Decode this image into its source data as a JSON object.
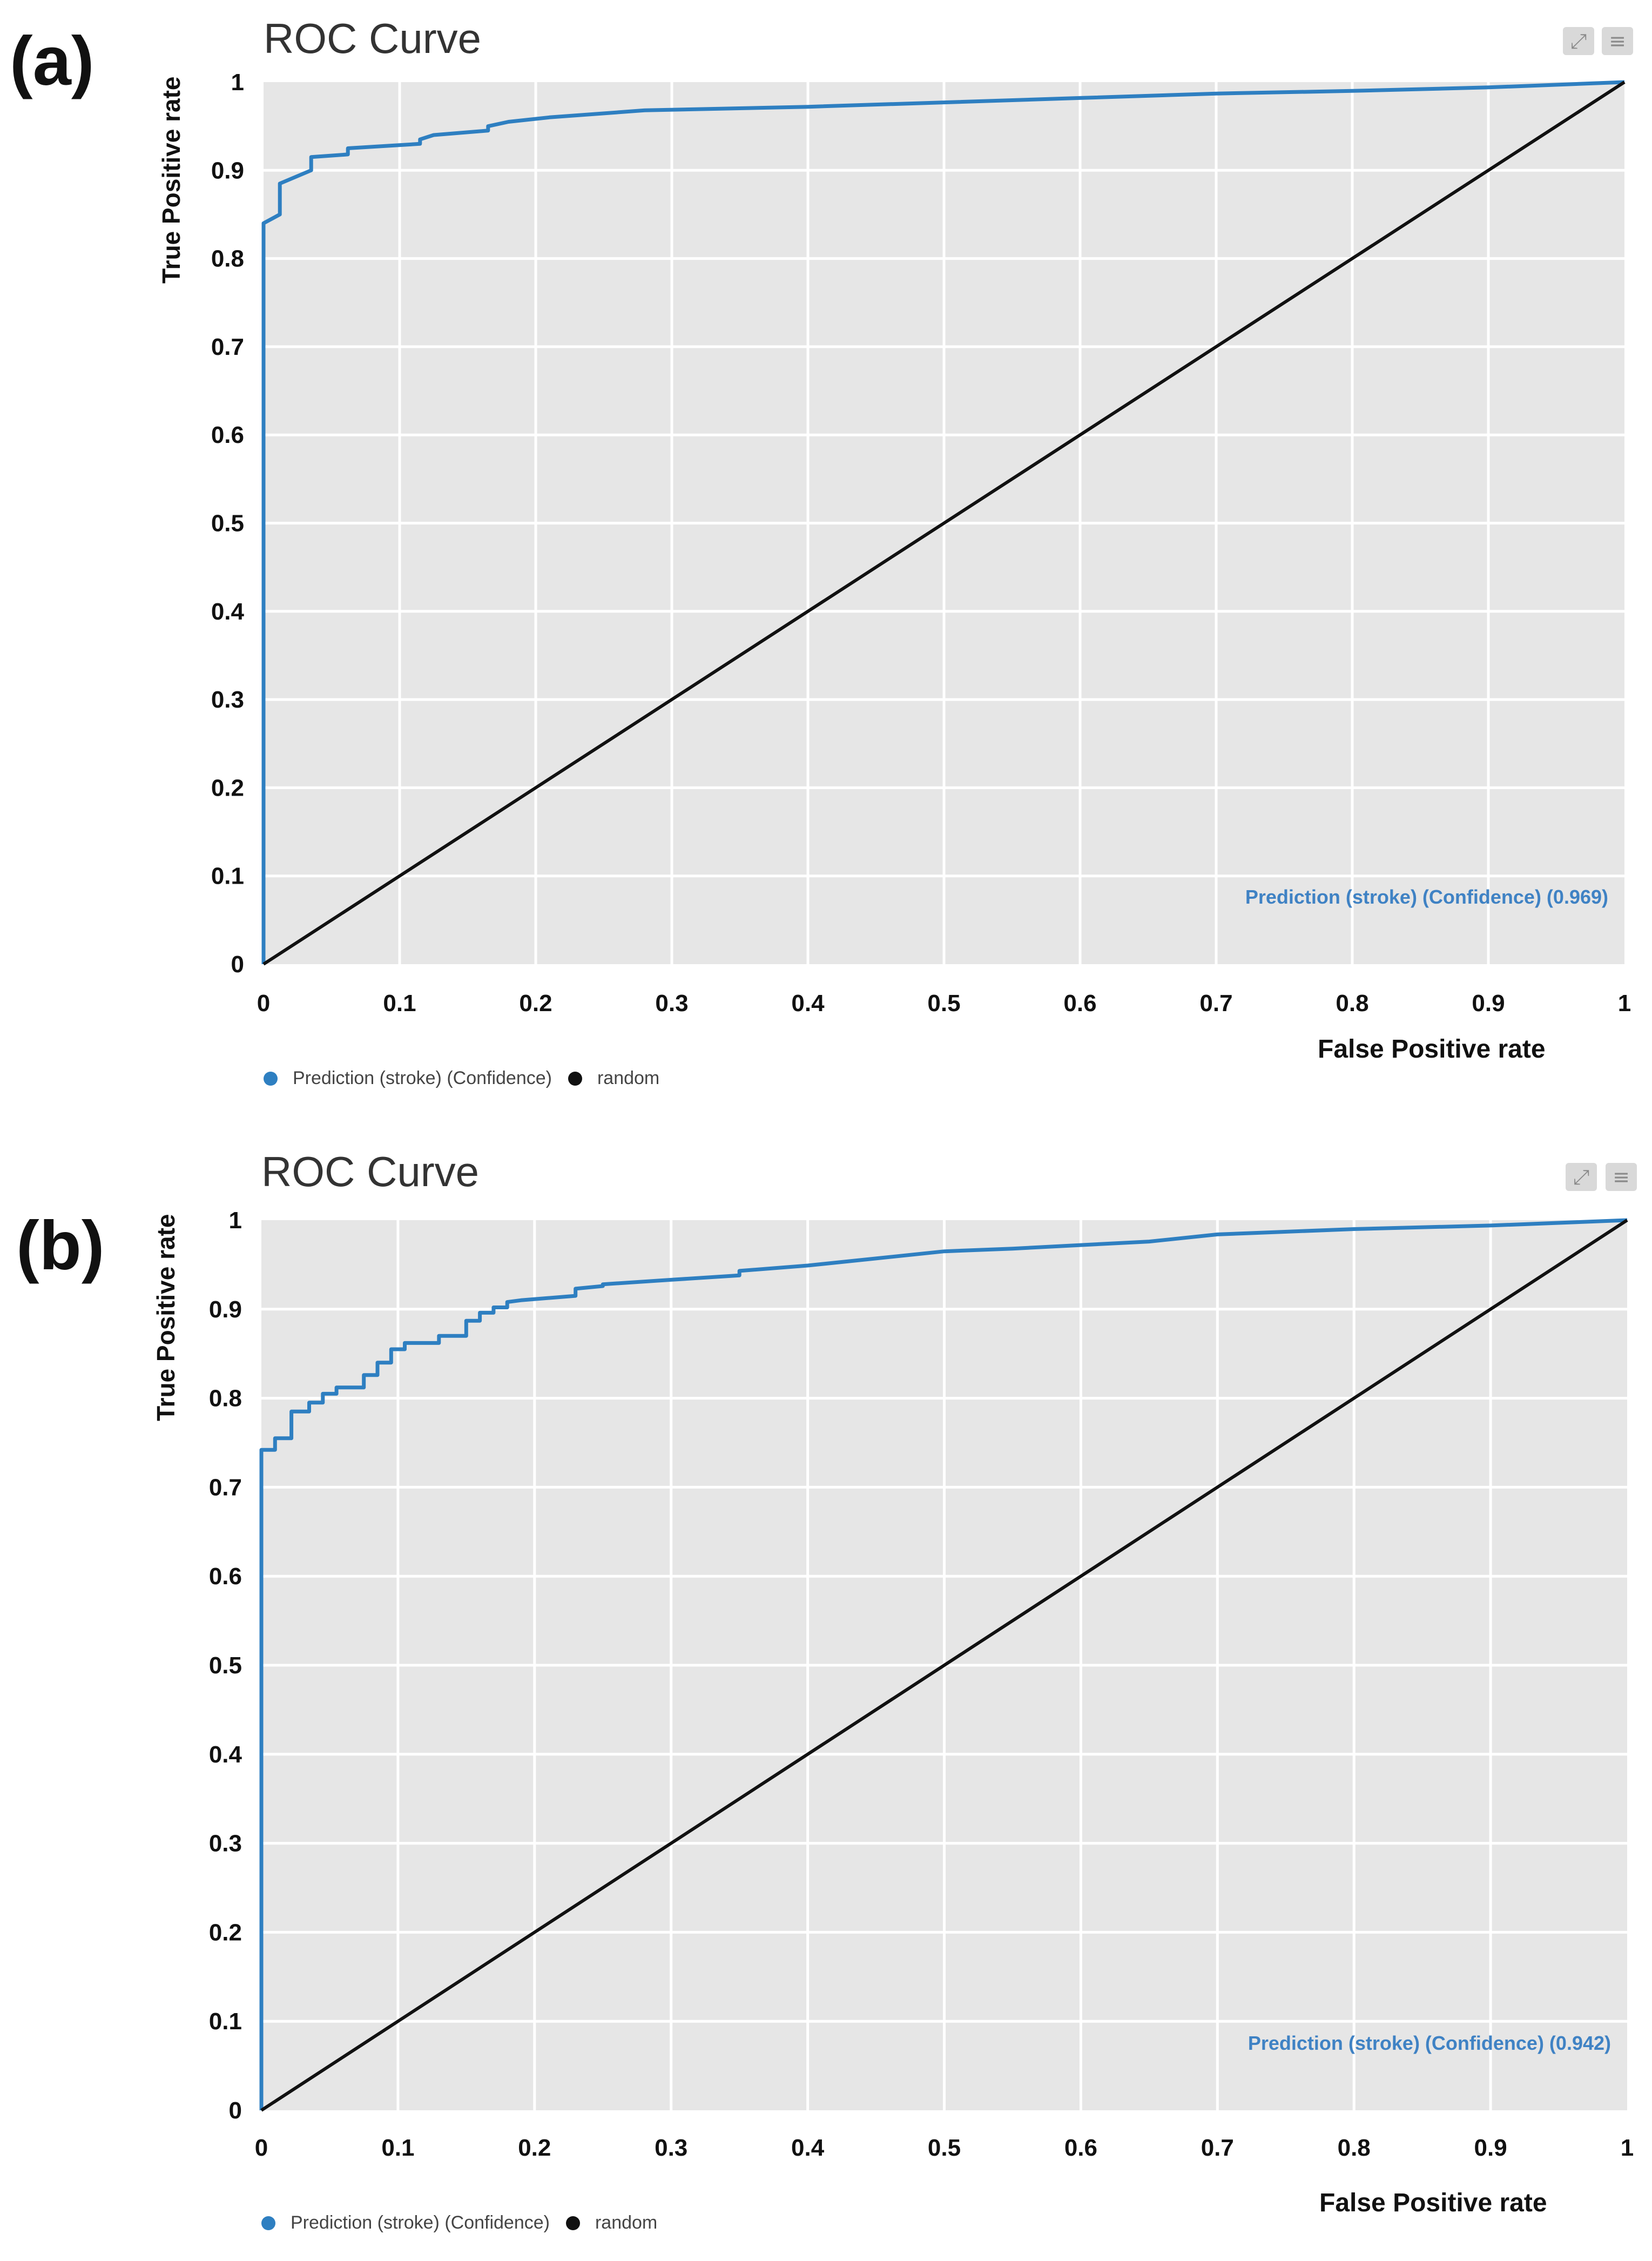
{
  "colors": {
    "curve": "#2e7fc1",
    "random": "#111111",
    "plot_bg": "#e6e6e6",
    "grid": "#ffffff",
    "auc_text": "#3f82c4"
  },
  "toolbar_icons": [
    "expand-icon",
    "menu-icon"
  ],
  "chart_data": [
    {
      "panel_label": "(a)",
      "type": "line",
      "title": "ROC Curve",
      "xlabel": "False Positive rate",
      "ylabel": "True Positive rate",
      "xlim": [
        0,
        1
      ],
      "ylim": [
        0,
        1
      ],
      "x_ticks": [
        "0",
        "0.1",
        "0.2",
        "0.3",
        "0.4",
        "0.5",
        "0.6",
        "0.7",
        "0.8",
        "0.9",
        "1"
      ],
      "y_ticks": [
        "0",
        "0.1",
        "0.2",
        "0.3",
        "0.4",
        "0.5",
        "0.6",
        "0.7",
        "0.8",
        "0.9",
        "1"
      ],
      "grid": true,
      "annotation": "Prediction (stroke) (Confidence) (0.969)",
      "legend": [
        "Prediction (stroke) (Confidence)",
        "random"
      ],
      "series": [
        {
          "name": "Prediction (stroke) (Confidence)",
          "x": [
            0,
            0,
            0.012,
            0.012,
            0.035,
            0.035,
            0.062,
            0.062,
            0.115,
            0.115,
            0.125,
            0.165,
            0.165,
            0.18,
            0.21,
            0.28,
            0.4,
            0.5,
            0.6,
            0.7,
            0.8,
            0.9,
            1
          ],
          "y": [
            0,
            0.84,
            0.85,
            0.885,
            0.9,
            0.915,
            0.918,
            0.925,
            0.93,
            0.935,
            0.94,
            0.945,
            0.95,
            0.955,
            0.96,
            0.968,
            0.972,
            0.977,
            0.982,
            0.987,
            0.99,
            0.994,
            1
          ]
        },
        {
          "name": "random",
          "x": [
            0,
            1
          ],
          "y": [
            0,
            1
          ]
        }
      ]
    },
    {
      "panel_label": "(b)",
      "type": "line",
      "title": "ROC Curve",
      "xlabel": "False Positive rate",
      "ylabel": "True Positive rate",
      "xlim": [
        0,
        1
      ],
      "ylim": [
        0,
        1
      ],
      "x_ticks": [
        "0",
        "0.1",
        "0.2",
        "0.3",
        "0.4",
        "0.5",
        "0.6",
        "0.7",
        "0.8",
        "0.9",
        "1"
      ],
      "y_ticks": [
        "0",
        "0.1",
        "0.2",
        "0.3",
        "0.4",
        "0.5",
        "0.6",
        "0.7",
        "0.8",
        "0.9",
        "1"
      ],
      "grid": true,
      "annotation": "Prediction (stroke) (Confidence) (0.942)",
      "legend": [
        "Prediction (stroke) (Confidence)",
        "random"
      ],
      "series": [
        {
          "name": "Prediction (stroke) (Confidence)",
          "x": [
            0,
            0,
            0.01,
            0.01,
            0.022,
            0.022,
            0.035,
            0.035,
            0.045,
            0.045,
            0.055,
            0.055,
            0.075,
            0.075,
            0.085,
            0.085,
            0.095,
            0.095,
            0.105,
            0.105,
            0.13,
            0.13,
            0.15,
            0.15,
            0.16,
            0.16,
            0.17,
            0.17,
            0.18,
            0.18,
            0.19,
            0.23,
            0.23,
            0.25,
            0.25,
            0.3,
            0.35,
            0.35,
            0.4,
            0.45,
            0.5,
            0.55,
            0.6,
            0.65,
            0.7,
            0.8,
            0.9,
            1
          ],
          "y": [
            0,
            0.742,
            0.742,
            0.755,
            0.755,
            0.785,
            0.785,
            0.795,
            0.795,
            0.805,
            0.805,
            0.812,
            0.812,
            0.826,
            0.826,
            0.84,
            0.84,
            0.855,
            0.855,
            0.862,
            0.862,
            0.87,
            0.87,
            0.887,
            0.887,
            0.896,
            0.896,
            0.902,
            0.902,
            0.908,
            0.91,
            0.915,
            0.923,
            0.926,
            0.928,
            0.933,
            0.938,
            0.943,
            0.949,
            0.957,
            0.965,
            0.968,
            0.972,
            0.976,
            0.984,
            0.99,
            0.994,
            1
          ]
        },
        {
          "name": "random",
          "x": [
            0,
            1
          ],
          "y": [
            0,
            1
          ]
        }
      ]
    }
  ]
}
